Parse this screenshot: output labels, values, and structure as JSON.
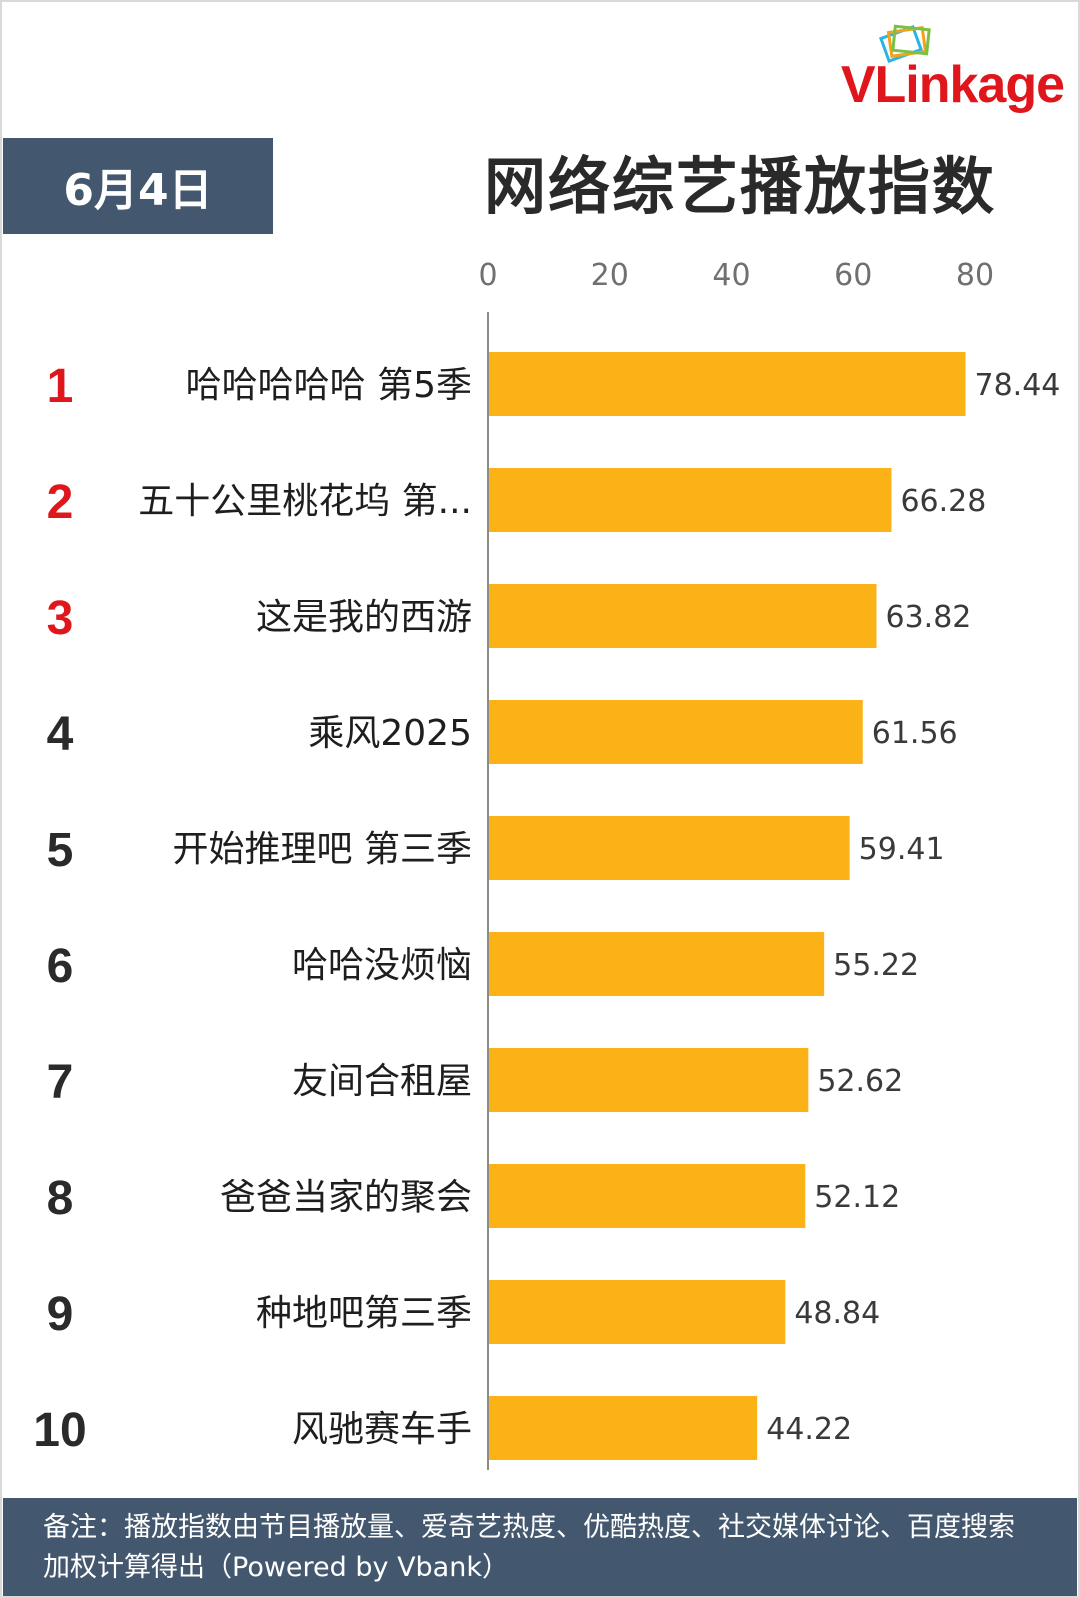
{
  "brand": {
    "name_v": "V",
    "name_rest": "Linkage"
  },
  "date_label": "6月4日",
  "title": "网络综艺播放指数",
  "chart_data": {
    "type": "bar",
    "orientation": "horizontal",
    "title": "网络综艺播放指数",
    "xlim": [
      0,
      80
    ],
    "xticks": [
      "0",
      "20",
      "40",
      "60",
      "80"
    ],
    "grid": false,
    "ranks": [
      "1",
      "2",
      "3",
      "4",
      "5",
      "6",
      "7",
      "8",
      "9",
      "10"
    ],
    "categories": [
      "哈哈哈哈哈 第5季",
      "五十公里桃花坞 第...",
      "这是我的西游",
      "乘风2025",
      "开始推理吧 第三季",
      "哈哈没烦恼",
      "友间合租屋",
      "爸爸当家的聚会",
      "种地吧第三季",
      "风驰赛车手"
    ],
    "values": [
      78.44,
      66.28,
      63.82,
      61.56,
      59.41,
      55.22,
      52.62,
      52.12,
      48.84,
      44.22
    ],
    "value_labels": [
      "78.44",
      "66.28",
      "63.82",
      "61.56",
      "59.41",
      "55.22",
      "52.62",
      "52.12",
      "48.84",
      "44.22"
    ],
    "bar_color": "#fbb216",
    "top_rank_color": "#e0161d",
    "rank_color": "#2a2a2a"
  },
  "footer_note": "备注：播放指数由节目播放量、爱奇艺热度、优酷热度、社交媒体讨论、百度搜索加权计算得出（Powered by Vbank）"
}
